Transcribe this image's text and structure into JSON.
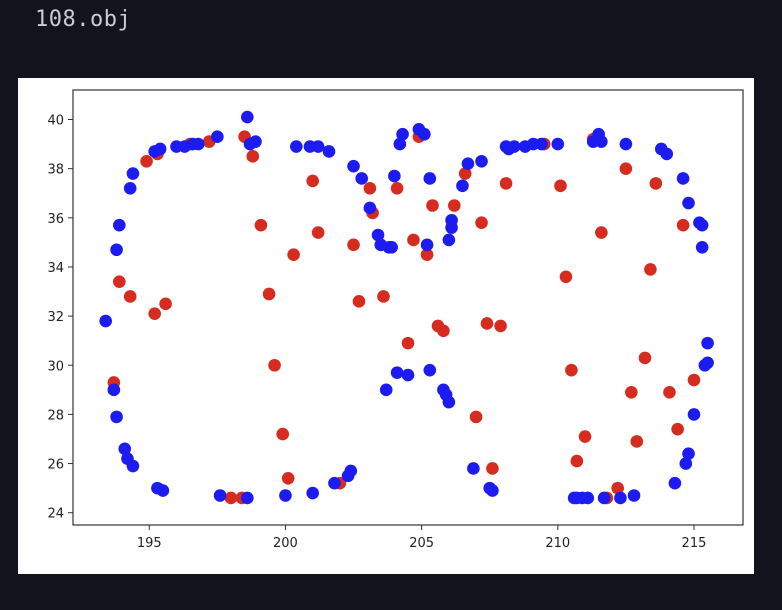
{
  "page": {
    "title": "108.obj"
  },
  "colors": {
    "background": "#12131c",
    "red": "#d62c1f",
    "blue": "#1c1cf0",
    "text": "#c9ccd6"
  },
  "chart_data": {
    "type": "scatter",
    "title": "",
    "xlabel": "",
    "ylabel": "",
    "xlim": [
      192.2,
      216.8
    ],
    "ylim": [
      23.5,
      41.2
    ],
    "xticks": [
      195,
      200,
      205,
      210,
      215
    ],
    "yticks": [
      24,
      26,
      28,
      30,
      32,
      34,
      36,
      38,
      40
    ],
    "grid": false,
    "series": [
      {
        "color": "#d62c1f",
        "points": [
          [
            194.9,
            38.3
          ],
          [
            195.3,
            38.6
          ],
          [
            196.5,
            39.0
          ],
          [
            197.2,
            39.1
          ],
          [
            198.5,
            39.3
          ],
          [
            198.8,
            38.5
          ],
          [
            199.1,
            35.7
          ],
          [
            200.3,
            34.5
          ],
          [
            201.0,
            37.5
          ],
          [
            201.2,
            35.4
          ],
          [
            202.5,
            34.9
          ],
          [
            202.7,
            32.6
          ],
          [
            203.1,
            37.2
          ],
          [
            203.2,
            36.2
          ],
          [
            203.6,
            32.8
          ],
          [
            204.1,
            37.2
          ],
          [
            204.5,
            30.9
          ],
          [
            204.7,
            35.1
          ],
          [
            204.9,
            39.3
          ],
          [
            205.2,
            34.5
          ],
          [
            205.4,
            36.5
          ],
          [
            205.6,
            31.6
          ],
          [
            205.8,
            31.4
          ],
          [
            206.2,
            36.5
          ],
          [
            206.6,
            37.8
          ],
          [
            207.0,
            27.9
          ],
          [
            207.2,
            35.8
          ],
          [
            207.4,
            31.7
          ],
          [
            207.9,
            31.6
          ],
          [
            207.6,
            25.8
          ],
          [
            208.1,
            37.4
          ],
          [
            209.5,
            39.0
          ],
          [
            210.1,
            37.3
          ],
          [
            210.3,
            33.6
          ],
          [
            210.5,
            29.8
          ],
          [
            210.7,
            26.1
          ],
          [
            211.0,
            27.1
          ],
          [
            211.3,
            39.2
          ],
          [
            211.6,
            35.4
          ],
          [
            211.8,
            24.6
          ],
          [
            212.2,
            25.0
          ],
          [
            212.5,
            38.0
          ],
          [
            212.7,
            28.9
          ],
          [
            212.9,
            26.9
          ],
          [
            213.2,
            30.3
          ],
          [
            213.4,
            33.9
          ],
          [
            213.6,
            37.4
          ],
          [
            214.1,
            28.9
          ],
          [
            214.4,
            27.4
          ],
          [
            214.6,
            35.7
          ],
          [
            215.0,
            29.4
          ],
          [
            193.7,
            29.3
          ],
          [
            193.9,
            33.4
          ],
          [
            194.3,
            32.8
          ],
          [
            195.2,
            32.1
          ],
          [
            195.6,
            32.5
          ],
          [
            198.0,
            24.6
          ],
          [
            198.4,
            24.6
          ],
          [
            199.4,
            32.9
          ],
          [
            199.6,
            30.0
          ],
          [
            199.9,
            27.2
          ],
          [
            200.1,
            25.4
          ],
          [
            202.0,
            25.2
          ]
        ]
      },
      {
        "color": "#1c1cf0",
        "points": [
          [
            193.4,
            31.8
          ],
          [
            193.7,
            29.0
          ],
          [
            193.8,
            27.9
          ],
          [
            193.8,
            34.7
          ],
          [
            193.9,
            35.7
          ],
          [
            194.1,
            26.6
          ],
          [
            194.2,
            26.2
          ],
          [
            194.3,
            37.2
          ],
          [
            194.4,
            25.9
          ],
          [
            194.4,
            37.8
          ],
          [
            195.2,
            38.7
          ],
          [
            195.3,
            25.0
          ],
          [
            195.4,
            38.8
          ],
          [
            195.5,
            24.9
          ],
          [
            196.0,
            38.9
          ],
          [
            196.3,
            38.9
          ],
          [
            196.6,
            39.0
          ],
          [
            196.8,
            39.0
          ],
          [
            197.5,
            39.3
          ],
          [
            197.6,
            24.7
          ],
          [
            198.6,
            24.6
          ],
          [
            198.6,
            40.1
          ],
          [
            198.7,
            39.0
          ],
          [
            198.9,
            39.1
          ],
          [
            200.0,
            24.7
          ],
          [
            200.4,
            38.9
          ],
          [
            200.9,
            38.9
          ],
          [
            201.0,
            24.8
          ],
          [
            201.2,
            38.9
          ],
          [
            201.6,
            38.7
          ],
          [
            201.8,
            25.2
          ],
          [
            202.3,
            25.5
          ],
          [
            202.4,
            25.7
          ],
          [
            202.5,
            38.1
          ],
          [
            202.8,
            37.6
          ],
          [
            203.1,
            36.4
          ],
          [
            203.4,
            35.3
          ],
          [
            203.5,
            34.9
          ],
          [
            203.7,
            29.0
          ],
          [
            203.8,
            34.8
          ],
          [
            203.9,
            34.8
          ],
          [
            204.0,
            37.7
          ],
          [
            204.1,
            29.7
          ],
          [
            204.2,
            39.0
          ],
          [
            204.3,
            39.4
          ],
          [
            204.5,
            29.6
          ],
          [
            204.9,
            39.6
          ],
          [
            205.1,
            39.4
          ],
          [
            205.2,
            34.9
          ],
          [
            205.3,
            37.6
          ],
          [
            205.3,
            29.8
          ],
          [
            205.8,
            29.0
          ],
          [
            205.9,
            28.8
          ],
          [
            206.0,
            28.5
          ],
          [
            206.0,
            35.1
          ],
          [
            206.1,
            35.6
          ],
          [
            206.1,
            35.9
          ],
          [
            206.5,
            37.3
          ],
          [
            206.7,
            38.2
          ],
          [
            206.9,
            25.8
          ],
          [
            207.2,
            38.3
          ],
          [
            207.5,
            25.0
          ],
          [
            207.6,
            24.9
          ],
          [
            208.1,
            38.9
          ],
          [
            208.2,
            38.8
          ],
          [
            208.4,
            38.9
          ],
          [
            208.8,
            38.9
          ],
          [
            209.1,
            39.0
          ],
          [
            209.4,
            39.0
          ],
          [
            210.0,
            39.0
          ],
          [
            210.6,
            24.6
          ],
          [
            210.7,
            24.6
          ],
          [
            210.9,
            24.6
          ],
          [
            211.1,
            24.6
          ],
          [
            211.3,
            39.1
          ],
          [
            211.5,
            39.4
          ],
          [
            211.6,
            39.1
          ],
          [
            211.7,
            24.6
          ],
          [
            212.3,
            24.6
          ],
          [
            212.5,
            39.0
          ],
          [
            212.8,
            24.7
          ],
          [
            213.8,
            38.8
          ],
          [
            214.0,
            38.6
          ],
          [
            214.3,
            25.2
          ],
          [
            214.6,
            37.6
          ],
          [
            214.7,
            26.0
          ],
          [
            214.8,
            36.6
          ],
          [
            214.8,
            26.4
          ],
          [
            215.0,
            28.0
          ],
          [
            215.2,
            35.8
          ],
          [
            215.3,
            35.7
          ],
          [
            215.3,
            34.8
          ],
          [
            215.4,
            30.0
          ],
          [
            215.5,
            30.9
          ],
          [
            215.5,
            30.1
          ]
        ]
      }
    ]
  }
}
